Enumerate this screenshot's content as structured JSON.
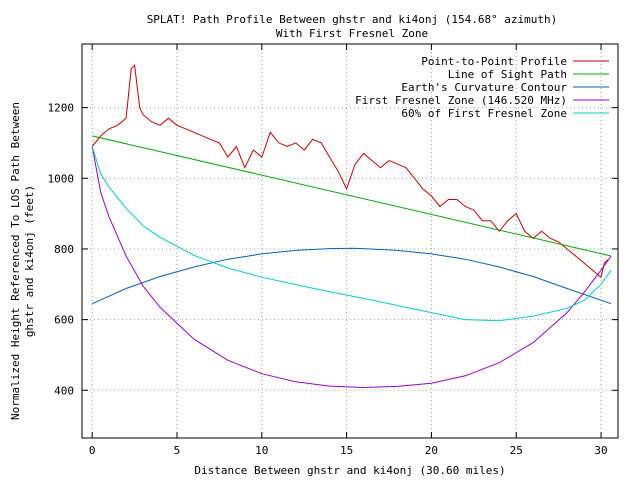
{
  "chart_data": {
    "type": "line",
    "title": "SPLAT! Path Profile Between ghstr and ki4onj (154.68° azimuth)",
    "subtitle": "With First Fresnel Zone",
    "xlabel": "Distance Between ghstr and ki4onj (30.60 miles)",
    "ylabel_line1": "Normalized Height Referenced To LOS Path Between",
    "ylabel_line2": "ghstr and ki4onj (feet)",
    "xlim": [
      -0.6,
      31.0
    ],
    "ylim": [
      265,
      1380
    ],
    "xticks": [
      0,
      5,
      10,
      15,
      20,
      25,
      30
    ],
    "xtick_labels": [
      "0",
      "5",
      "10",
      "15",
      "20",
      "25",
      "30"
    ],
    "yticks": [
      400,
      600,
      800,
      1000,
      1200
    ],
    "ytick_labels": [
      "400",
      "600",
      "800",
      "1000",
      "1200"
    ],
    "grid": true,
    "legend_position": "top-right",
    "series": [
      {
        "name": "Point-to-Point Profile",
        "color": "#cc0000",
        "x": [
          0,
          0.5,
          1,
          1.5,
          2,
          2.3,
          2.5,
          2.8,
          3,
          3.5,
          4,
          4.5,
          5,
          5.5,
          6,
          6.5,
          7,
          7.5,
          8,
          8.5,
          9,
          9.5,
          10,
          10.5,
          11,
          11.5,
          12,
          12.5,
          13,
          13.5,
          14,
          14.5,
          15,
          15.5,
          16,
          16.5,
          17,
          17.5,
          18,
          18.5,
          19,
          19.5,
          20,
          20.5,
          21,
          21.5,
          22,
          22.5,
          23,
          23.5,
          24,
          24.5,
          25,
          25.5,
          26,
          26.5,
          27,
          27.5,
          28,
          28.5,
          29,
          29.5,
          30,
          30.2,
          30.4
        ],
        "y": [
          1090,
          1120,
          1140,
          1150,
          1170,
          1310,
          1320,
          1200,
          1180,
          1160,
          1150,
          1170,
          1150,
          1140,
          1130,
          1120,
          1110,
          1100,
          1060,
          1090,
          1030,
          1080,
          1060,
          1130,
          1100,
          1090,
          1100,
          1080,
          1110,
          1100,
          1060,
          1020,
          970,
          1040,
          1070,
          1050,
          1030,
          1050,
          1040,
          1030,
          1000,
          970,
          950,
          920,
          940,
          940,
          920,
          910,
          880,
          880,
          850,
          880,
          900,
          850,
          830,
          850,
          830,
          820,
          800,
          780,
          760,
          740,
          720,
          760,
          770
        ]
      },
      {
        "name": "Line of Sight Path",
        "color": "#00aa00",
        "x": [
          0,
          30.6
        ],
        "y": [
          1120,
          780
        ]
      },
      {
        "name": "Earth's Curvature Contour",
        "color": "#0060c0",
        "x": [
          0,
          2,
          4,
          6,
          8,
          10,
          12,
          14,
          15.3,
          16,
          18,
          20,
          22,
          24,
          26,
          28,
          30.6
        ],
        "y": [
          645,
          688,
          722,
          749,
          771,
          786,
          796,
          801,
          802,
          801,
          796,
          786,
          771,
          749,
          722,
          688,
          645
        ]
      },
      {
        "name": "First Fresnel Zone (146.520 MHz)",
        "color": "#9900cc",
        "x": [
          0,
          0.5,
          1,
          2,
          3,
          4,
          6,
          8,
          10,
          12,
          14,
          16,
          18,
          20,
          22,
          24,
          26,
          28,
          29,
          30,
          30.6
        ],
        "y": [
          1090,
          960,
          890,
          780,
          695,
          635,
          545,
          485,
          447,
          424,
          412,
          408,
          411,
          420,
          441,
          478,
          535,
          620,
          677,
          740,
          780
        ]
      },
      {
        "name": "60% of First Fresnel Zone",
        "color": "#00cccc",
        "x": [
          0,
          0.5,
          1,
          2,
          3,
          4,
          6,
          8,
          10,
          12,
          14,
          16,
          18,
          20,
          22,
          24,
          26,
          28,
          29,
          30,
          30.6
        ],
        "y": [
          1090,
          1013,
          975,
          915,
          866,
          833,
          782,
          746,
          720,
          699,
          679,
          660,
          640,
          620,
          600,
          597,
          610,
          632,
          654,
          700,
          740
        ]
      }
    ]
  }
}
